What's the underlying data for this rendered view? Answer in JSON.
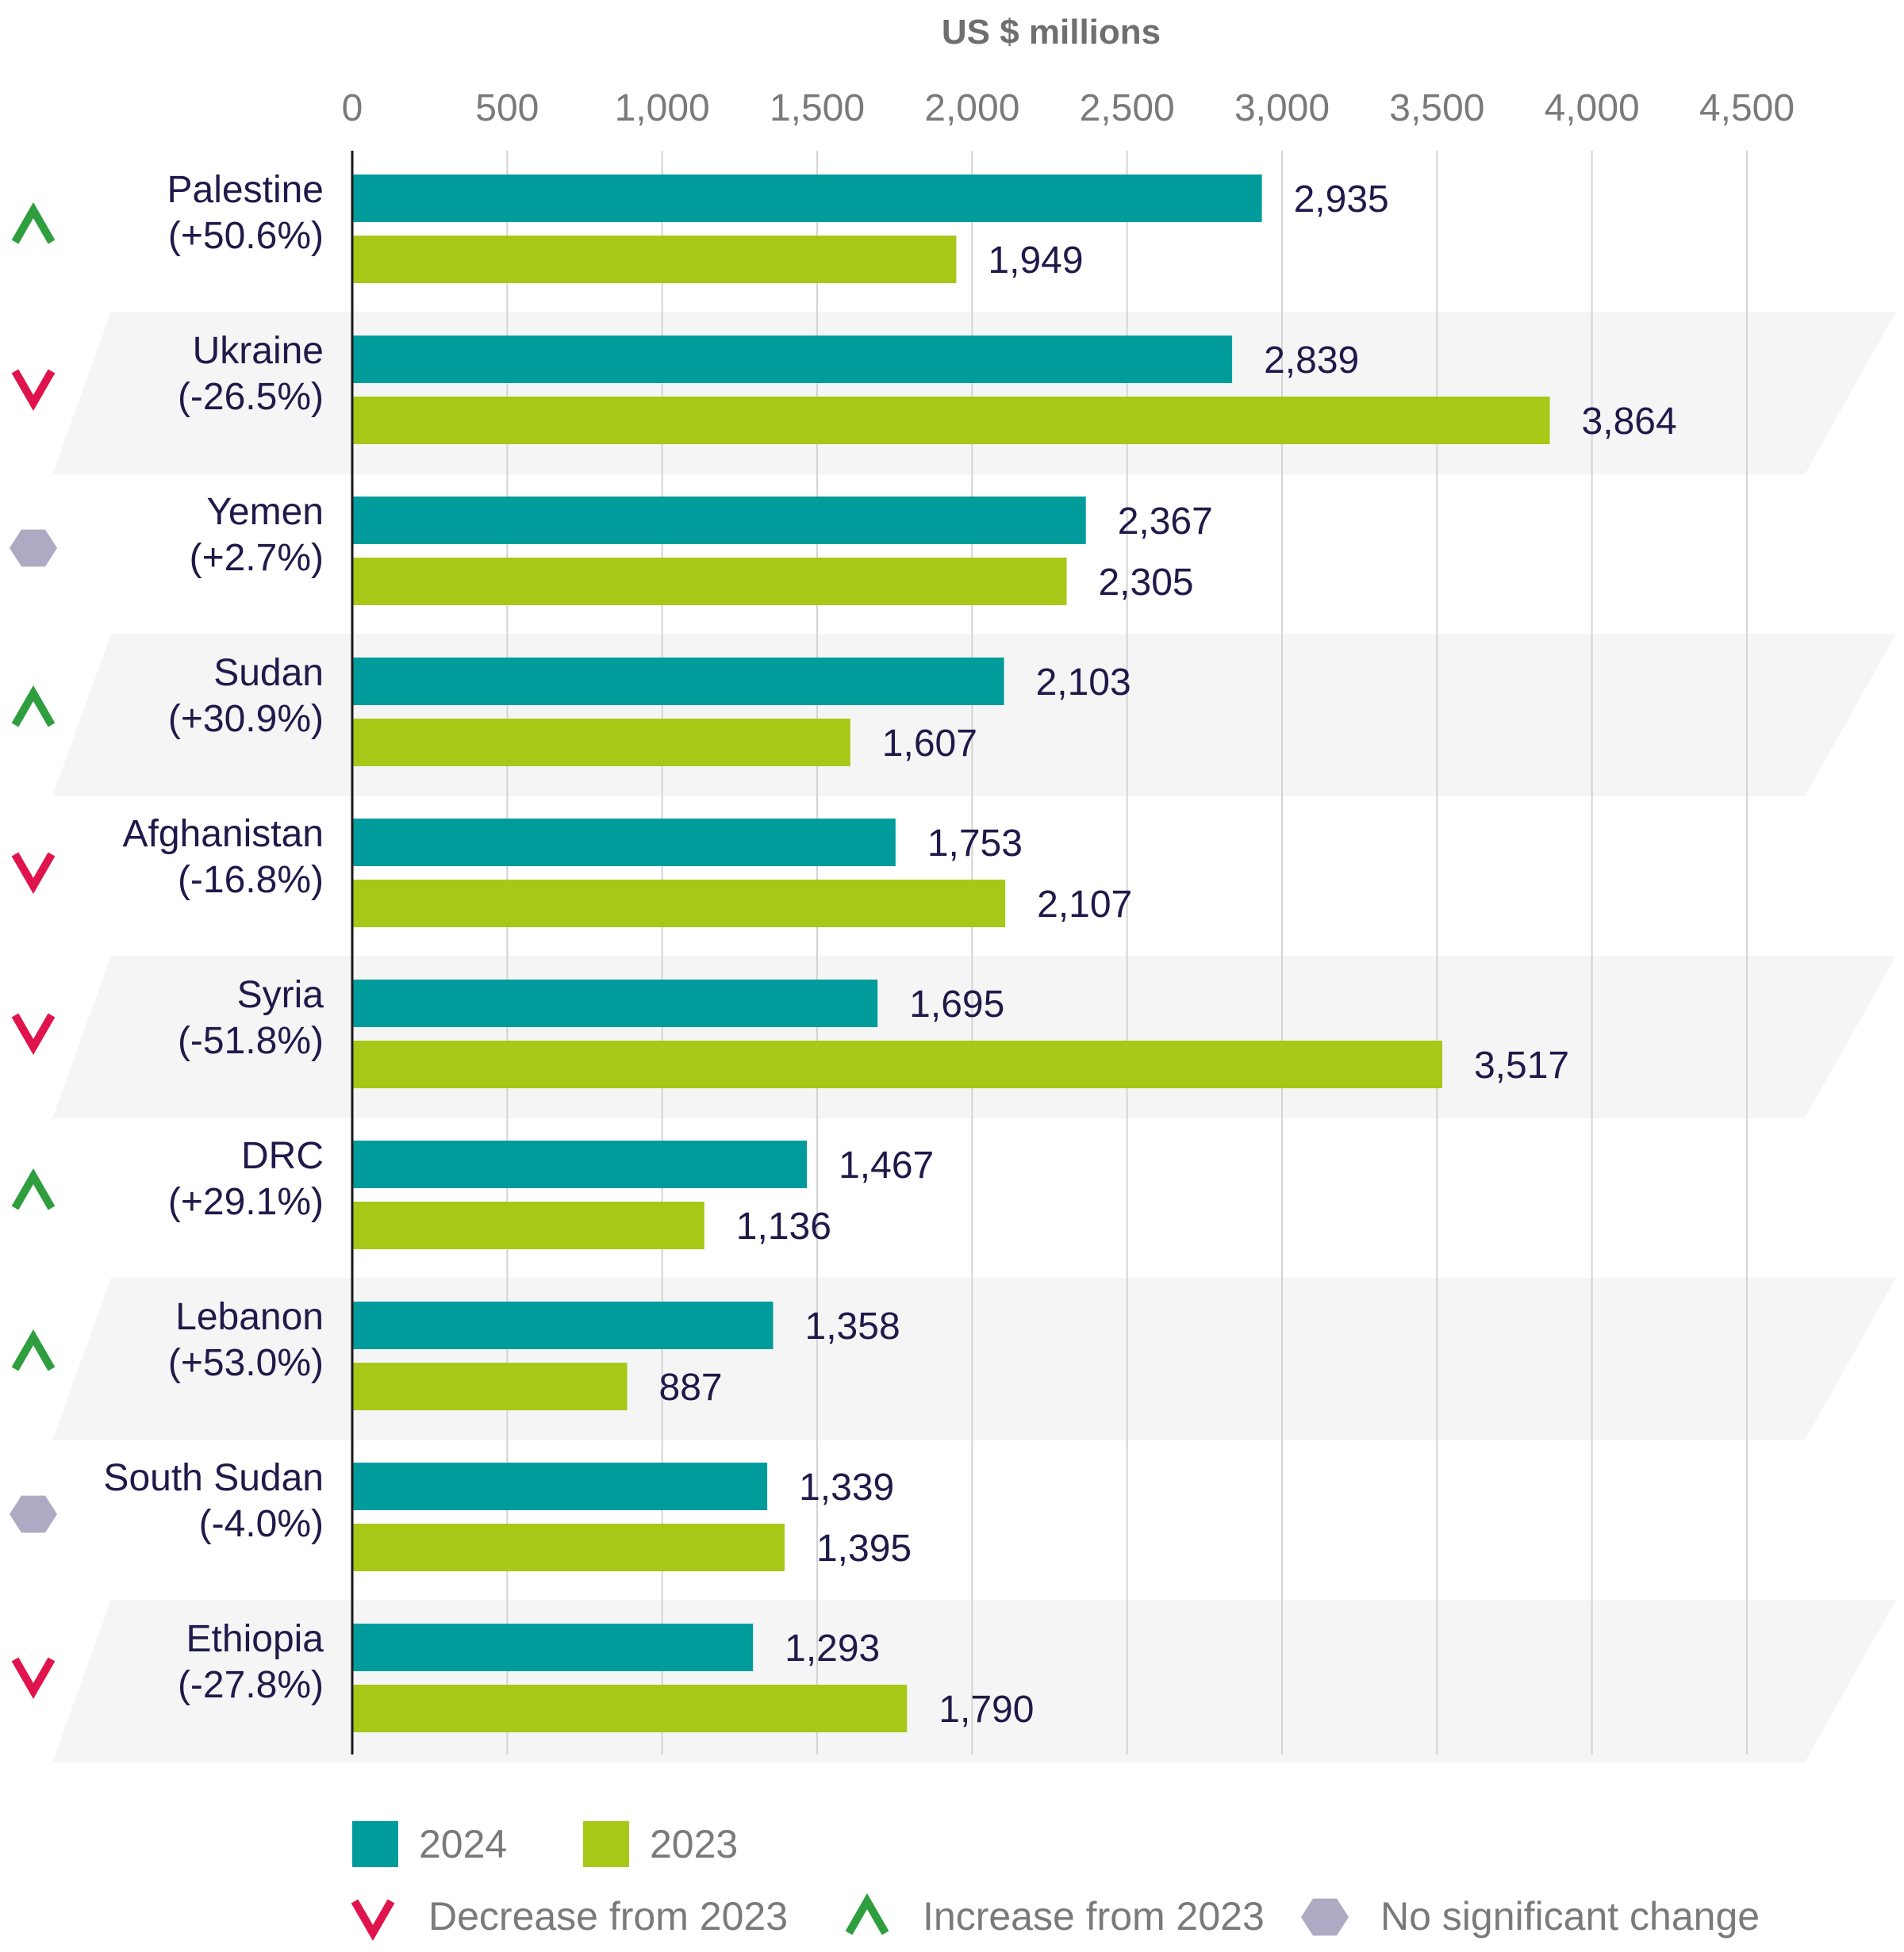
{
  "chart_data": {
    "type": "bar",
    "orientation": "horizontal",
    "xlabel": "US $ millions",
    "xlim": [
      0,
      4500
    ],
    "xticks": [
      0,
      500,
      1000,
      1500,
      2000,
      2500,
      3000,
      3500,
      4000,
      4500
    ],
    "xtick_labels": [
      "0",
      "500",
      "1,000",
      "1,500",
      "2,000",
      "2,500",
      "3,000",
      "3,500",
      "4,000",
      "4,500"
    ],
    "grid": true,
    "legend_position": "bottom",
    "categories": [
      {
        "name": "Palestine",
        "change": "(+50.6%)",
        "trend": "increase"
      },
      {
        "name": "Ukraine",
        "change": "(-26.5%)",
        "trend": "decrease"
      },
      {
        "name": "Yemen",
        "change": "(+2.7%)",
        "trend": "none"
      },
      {
        "name": "Sudan",
        "change": "(+30.9%)",
        "trend": "increase"
      },
      {
        "name": "Afghanistan",
        "change": "(-16.8%)",
        "trend": "decrease"
      },
      {
        "name": "Syria",
        "change": "(-51.8%)",
        "trend": "decrease"
      },
      {
        "name": "DRC",
        "change": "(+29.1%)",
        "trend": "increase"
      },
      {
        "name": "Lebanon",
        "change": "(+53.0%)",
        "trend": "increase"
      },
      {
        "name": "South Sudan",
        "change": "(-4.0%)",
        "trend": "none"
      },
      {
        "name": "Ethiopia",
        "change": "(-27.8%)",
        "trend": "decrease"
      }
    ],
    "series": [
      {
        "name": "2024",
        "color": "#009c9c",
        "values": [
          2935,
          2839,
          2367,
          2103,
          1753,
          1695,
          1467,
          1358,
          1339,
          1293
        ],
        "labels": [
          "2,935",
          "2,839",
          "2,367",
          "2,103",
          "1,753",
          "1,695",
          "1,467",
          "1,358",
          "1,339",
          "1,293"
        ]
      },
      {
        "name": "2023",
        "color": "#a8c817",
        "values": [
          1949,
          3864,
          2305,
          1607,
          2107,
          3517,
          1136,
          887,
          1395,
          1790
        ],
        "labels": [
          "1,949",
          "3,864",
          "2,305",
          "1,607",
          "2,107",
          "3,517",
          "1,136",
          "887",
          "1,395",
          "1,790"
        ]
      }
    ],
    "trend_legend": [
      {
        "trend": "decrease",
        "label": "Decrease from 2023",
        "color": "#e0144c",
        "icon": "chevron-down-icon"
      },
      {
        "trend": "increase",
        "label": "Increase from 2023",
        "color": "#2e9e3e",
        "icon": "chevron-up-icon"
      },
      {
        "trend": "none",
        "label": "No significant change",
        "color": "#aeaac4",
        "icon": "hexagon-icon"
      }
    ],
    "band_color": "#f5f5f5",
    "grid_color": "#d4d4d4"
  }
}
